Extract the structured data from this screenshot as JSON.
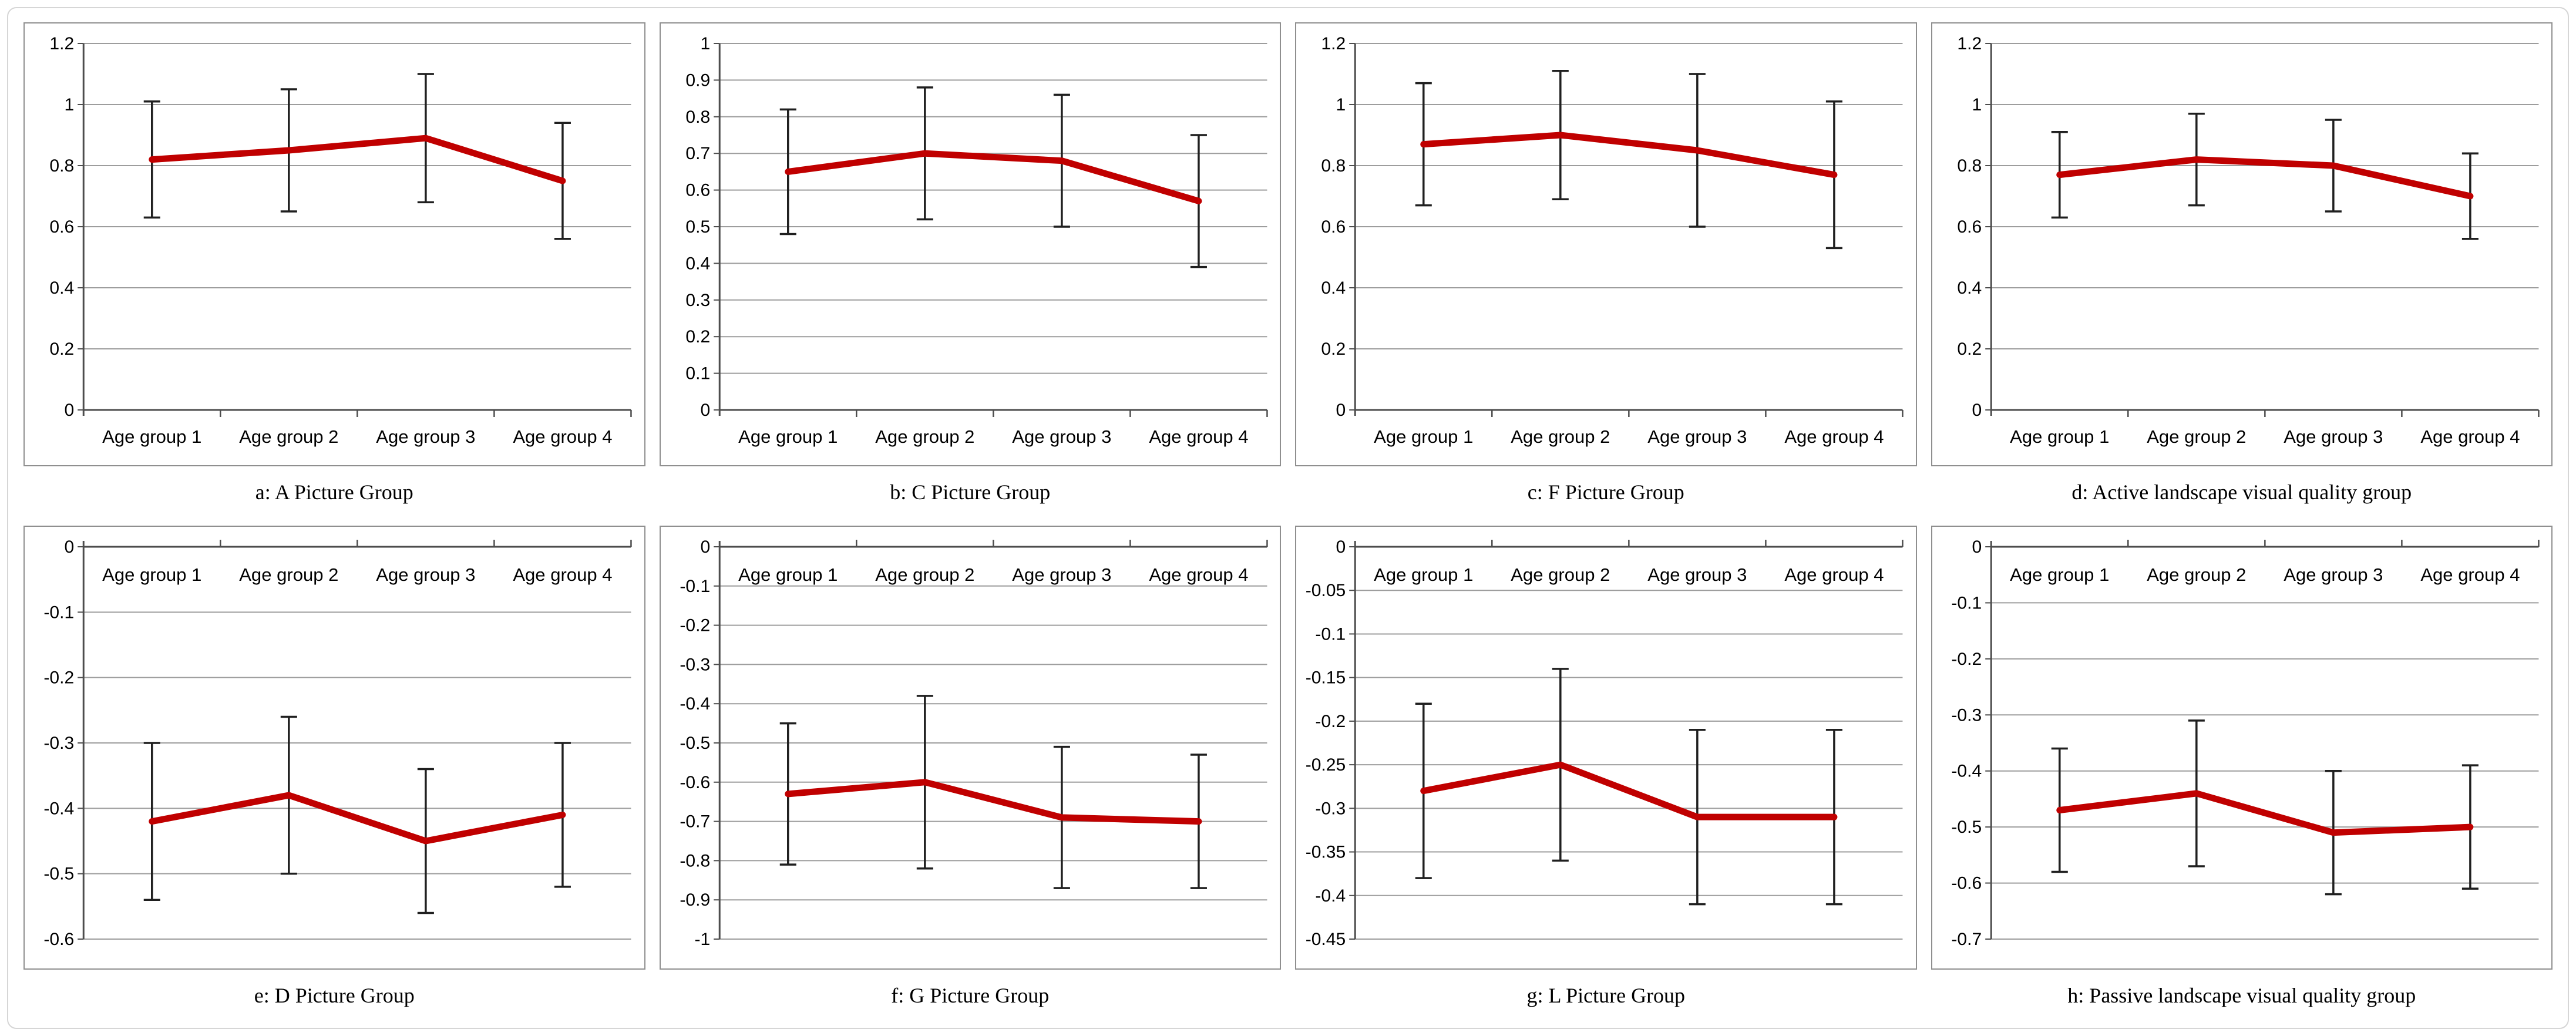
{
  "colors": {
    "line": "#c00000",
    "error_bar": "#1f1f1f",
    "gridline": "#9d9d9d",
    "axis": "#4d4d4d",
    "panel_border": "#8f8f8f",
    "figure_border": "#d6d6d6"
  },
  "chart_data": [
    {
      "id": "a",
      "type": "line",
      "caption": "a: A Picture Group",
      "categories": [
        "Age group 1",
        "Age group 2",
        "Age group 3",
        "Age group 4"
      ],
      "values": [
        0.82,
        0.85,
        0.89,
        0.75
      ],
      "error_low": [
        0.63,
        0.65,
        0.68,
        0.56
      ],
      "error_high": [
        1.01,
        1.05,
        1.1,
        0.94
      ],
      "ylim": [
        0,
        1.2
      ],
      "ytick_labels": [
        "1.2",
        "1",
        "0.8",
        "0.6",
        "0.4",
        "0.2",
        "0"
      ],
      "grid": true,
      "legend": "none",
      "line_color": "#c00000"
    },
    {
      "id": "b",
      "type": "line",
      "caption": "b: C Picture Group",
      "categories": [
        "Age group 1",
        "Age group 2",
        "Age group 3",
        "Age group 4"
      ],
      "values": [
        0.65,
        0.7,
        0.68,
        0.57
      ],
      "error_low": [
        0.48,
        0.52,
        0.5,
        0.39
      ],
      "error_high": [
        0.82,
        0.88,
        0.86,
        0.75
      ],
      "ylim": [
        0,
        1
      ],
      "ytick_labels": [
        "1",
        "0.9",
        "0.8",
        "0.7",
        "0.6",
        "0.5",
        "0.4",
        "0.3",
        "0.2",
        "0.1",
        "0"
      ],
      "grid": true,
      "legend": "none",
      "line_color": "#c00000"
    },
    {
      "id": "c",
      "type": "line",
      "caption": "c: F Picture Group",
      "categories": [
        "Age group 1",
        "Age group 2",
        "Age group 3",
        "Age group 4"
      ],
      "values": [
        0.87,
        0.9,
        0.85,
        0.77
      ],
      "error_low": [
        0.67,
        0.69,
        0.6,
        0.53
      ],
      "error_high": [
        1.07,
        1.11,
        1.1,
        1.01
      ],
      "ylim": [
        0,
        1.2
      ],
      "ytick_labels": [
        "1.2",
        "1",
        "0.8",
        "0.6",
        "0.4",
        "0.2",
        "0"
      ],
      "grid": true,
      "legend": "none",
      "line_color": "#c00000"
    },
    {
      "id": "d",
      "type": "line",
      "caption": "d: Active landscape visual quality group",
      "categories": [
        "Age group 1",
        "Age group 2",
        "Age group 3",
        "Age group 4"
      ],
      "values": [
        0.77,
        0.82,
        0.8,
        0.7
      ],
      "error_low": [
        0.63,
        0.67,
        0.65,
        0.56
      ],
      "error_high": [
        0.91,
        0.97,
        0.95,
        0.84
      ],
      "ylim": [
        0,
        1.2
      ],
      "ytick_labels": [
        "1.2",
        "1",
        "0.8",
        "0.6",
        "0.4",
        "0.2",
        "0"
      ],
      "grid": true,
      "legend": "none",
      "line_color": "#c00000"
    },
    {
      "id": "e",
      "type": "line",
      "caption": "e: D Picture Group",
      "categories": [
        "Age group 1",
        "Age group 2",
        "Age group 3",
        "Age group 4"
      ],
      "values": [
        -0.42,
        -0.38,
        -0.45,
        -0.41
      ],
      "error_low": [
        -0.54,
        -0.5,
        -0.56,
        -0.52
      ],
      "error_high": [
        -0.3,
        -0.26,
        -0.34,
        -0.3
      ],
      "ylim": [
        -0.6,
        0
      ],
      "ytick_labels": [
        "0",
        "-0.1",
        "-0.2",
        "-0.3",
        "-0.4",
        "-0.5",
        "-0.6"
      ],
      "grid": true,
      "legend": "none",
      "line_color": "#c00000"
    },
    {
      "id": "f",
      "type": "line",
      "caption": "f: G Picture Group",
      "categories": [
        "Age group 1",
        "Age group 2",
        "Age group 3",
        "Age group 4"
      ],
      "values": [
        -0.63,
        -0.6,
        -0.69,
        -0.7
      ],
      "error_low": [
        -0.81,
        -0.82,
        -0.87,
        -0.87
      ],
      "error_high": [
        -0.45,
        -0.38,
        -0.51,
        -0.53
      ],
      "ylim": [
        -1,
        0
      ],
      "ytick_labels": [
        "0",
        "-0.1",
        "-0.2",
        "-0.3",
        "-0.4",
        "-0.5",
        "-0.6",
        "-0.7",
        "-0.8",
        "-0.9",
        "-1"
      ],
      "grid": true,
      "legend": "none",
      "line_color": "#c00000"
    },
    {
      "id": "g",
      "type": "line",
      "caption": "g: L Picture Group",
      "categories": [
        "Age group 1",
        "Age group 2",
        "Age group 3",
        "Age group 4"
      ],
      "values": [
        -0.28,
        -0.25,
        -0.31,
        -0.31
      ],
      "error_low": [
        -0.38,
        -0.36,
        -0.41,
        -0.41
      ],
      "error_high": [
        -0.18,
        -0.14,
        -0.21,
        -0.21
      ],
      "ylim": [
        -0.45,
        0
      ],
      "ytick_labels": [
        "0",
        "-0.05",
        "-0.1",
        "-0.15",
        "-0.2",
        "-0.25",
        "-0.3",
        "-0.35",
        "-0.4",
        "-0.45"
      ],
      "grid": true,
      "legend": "none",
      "line_color": "#c00000"
    },
    {
      "id": "h",
      "type": "line",
      "caption": "h: Passive landscape visual quality group",
      "categories": [
        "Age group 1",
        "Age group 2",
        "Age group 3",
        "Age group 4"
      ],
      "values": [
        -0.47,
        -0.44,
        -0.51,
        -0.5
      ],
      "error_low": [
        -0.58,
        -0.57,
        -0.62,
        -0.61
      ],
      "error_high": [
        -0.36,
        -0.31,
        -0.4,
        -0.39
      ],
      "ylim": [
        -0.7,
        0
      ],
      "ytick_labels": [
        "0",
        "-0.1",
        "-0.2",
        "-0.3",
        "-0.4",
        "-0.5",
        "-0.6",
        "-0.7"
      ],
      "grid": true,
      "legend": "none",
      "line_color": "#c00000"
    }
  ]
}
